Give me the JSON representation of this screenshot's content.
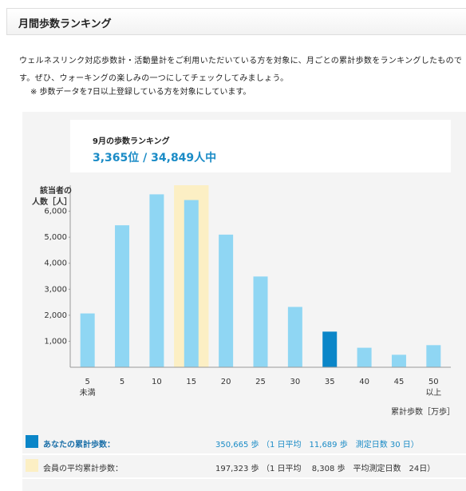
{
  "header": {
    "title": "月間歩数ランキング"
  },
  "description": "ウェルネスリンク対応歩数計・活動量計をご利用いただいている方を対象に、月ごとの累計歩数をランキングしたものです。ぜひ、ウォーキングの楽しみの一つにしてチェックしてみましょう。",
  "note": "※ 歩数データを7日以上登録している方を対象にしています。",
  "ranking": {
    "label": "9月の歩数ランキング",
    "value": "3,365位 / 34,849人中"
  },
  "chart_data": {
    "type": "bar",
    "y_label": "該当者の\n人数［人］",
    "x_label": "累計歩数［万歩］",
    "categories": [
      "5\n未満",
      "5",
      "10",
      "15",
      "20",
      "25",
      "30",
      "35",
      "40",
      "45",
      "50\n以上"
    ],
    "values": [
      2070,
      5460,
      6650,
      6430,
      5100,
      3490,
      2320,
      1370,
      750,
      480,
      850
    ],
    "colors": [
      "#8fd6f3",
      "#8fd6f3",
      "#8fd6f3",
      "#8fd6f3",
      "#8fd6f3",
      "#8fd6f3",
      "#8fd6f3",
      "#0b86c8",
      "#8fd6f3",
      "#8fd6f3",
      "#8fd6f3"
    ],
    "average_category": "15",
    "average_color": "#fcefc4",
    "ylim": [
      0,
      7000
    ],
    "yticks": [
      {
        "value": 1000,
        "label": "1,000"
      },
      {
        "value": 2000,
        "label": "2,000"
      },
      {
        "value": 3000,
        "label": "3,000"
      },
      {
        "value": 4000,
        "label": "4,000"
      },
      {
        "value": 5000,
        "label": "5,000"
      },
      {
        "value": 6000,
        "label": "6,000"
      }
    ]
  },
  "legend": [
    {
      "color": "#0b86c8",
      "label": "あなたの累計歩数：",
      "value": "350,665 歩",
      "detail": "（1 日平均　11,689 歩　測定日数 30 日）"
    },
    {
      "color": "#fcefc4",
      "label": "会員の平均累計歩数：",
      "value": "197,323 歩",
      "detail": "（1 日平均　 8,308 歩　平均測定日数　24日）"
    }
  ]
}
